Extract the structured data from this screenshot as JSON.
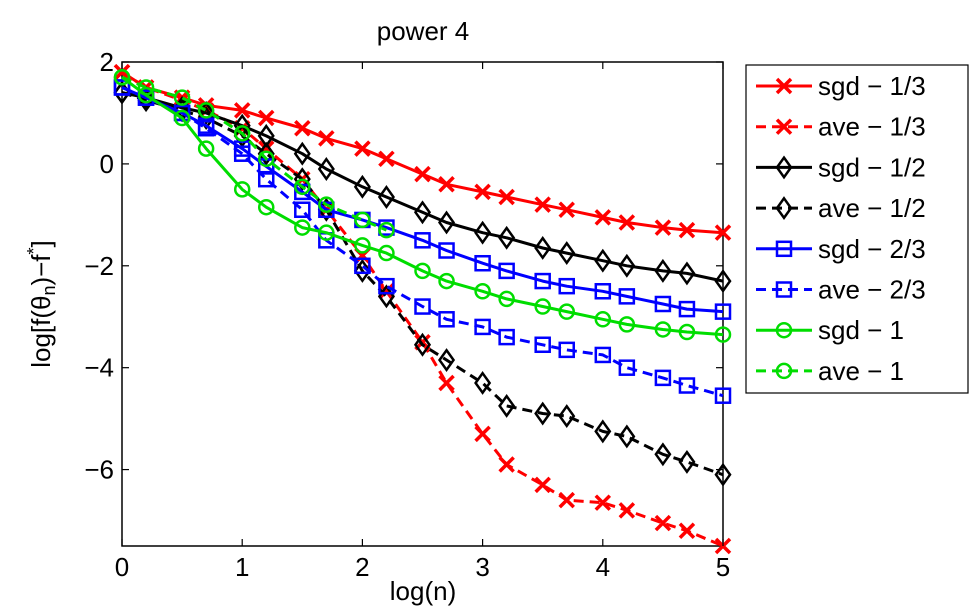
{
  "chart_data": {
    "type": "line",
    "title": "power 4",
    "xlabel": "log(n)",
    "ylabel_parts": {
      "main": "log[f(θ",
      "sub": "n",
      "mid": ")−f",
      "sup": "*",
      "end": "]"
    },
    "xlim": [
      0,
      5
    ],
    "ylim": [
      -7.5,
      2
    ],
    "xticks": [
      0,
      1,
      2,
      3,
      4,
      5
    ],
    "xtick_labels": [
      "0",
      "1",
      "2",
      "3",
      "4",
      "5"
    ],
    "yticks": [
      2,
      0,
      -2,
      -4,
      -6
    ],
    "ytick_labels": [
      "2",
      "0",
      "−2",
      "−4",
      "−6"
    ],
    "grid": false,
    "legend_position": "outside-right",
    "series": [
      {
        "name": "sgd − 1/3",
        "color": "#ff0000",
        "dash": "solid",
        "marker": "x",
        "x": [
          0,
          0.2,
          0.5,
          0.7,
          1.0,
          1.2,
          1.5,
          1.7,
          2.0,
          2.2,
          2.5,
          2.7,
          3.0,
          3.2,
          3.5,
          3.7,
          4.0,
          4.2,
          4.5,
          4.7,
          5.0
        ],
        "y": [
          1.8,
          1.5,
          1.3,
          1.15,
          1.05,
          0.9,
          0.7,
          0.5,
          0.3,
          0.1,
          -0.2,
          -0.4,
          -0.55,
          -0.65,
          -0.8,
          -0.9,
          -1.05,
          -1.15,
          -1.25,
          -1.3,
          -1.35
        ]
      },
      {
        "name": "ave − 1/3",
        "color": "#ff0000",
        "dash": "dashed",
        "marker": "x",
        "x": [
          0,
          0.2,
          0.5,
          0.7,
          1.0,
          1.2,
          1.5,
          1.7,
          2.0,
          2.2,
          2.5,
          2.7,
          3.0,
          3.2,
          3.5,
          3.7,
          4.0,
          4.2,
          4.5,
          4.7,
          5.0
        ],
        "y": [
          1.8,
          1.5,
          1.25,
          1.05,
          0.7,
          0.3,
          -0.3,
          -0.9,
          -1.8,
          -2.5,
          -3.5,
          -4.3,
          -5.3,
          -5.9,
          -6.3,
          -6.6,
          -6.65,
          -6.8,
          -7.05,
          -7.2,
          -7.5
        ]
      },
      {
        "name": "sgd − 1/2",
        "color": "#000000",
        "dash": "solid",
        "marker": "diamond",
        "x": [
          0,
          0.2,
          0.5,
          0.7,
          1.0,
          1.2,
          1.5,
          1.7,
          2.0,
          2.2,
          2.5,
          2.7,
          3.0,
          3.2,
          3.5,
          3.7,
          4.0,
          4.2,
          4.5,
          4.7,
          5.0
        ],
        "y": [
          1.4,
          1.3,
          1.1,
          1.0,
          0.75,
          0.55,
          0.2,
          -0.1,
          -0.45,
          -0.65,
          -0.95,
          -1.15,
          -1.35,
          -1.45,
          -1.65,
          -1.75,
          -1.9,
          -2.0,
          -2.1,
          -2.15,
          -2.3
        ]
      },
      {
        "name": "ave − 1/2",
        "color": "#000000",
        "dash": "dashed",
        "marker": "diamond",
        "x": [
          0,
          0.2,
          0.5,
          0.7,
          1.0,
          1.2,
          1.5,
          1.7,
          2.0,
          2.2,
          2.5,
          2.7,
          3.0,
          3.2,
          3.5,
          3.7,
          4.0,
          4.2,
          4.5,
          4.7,
          5.0
        ],
        "y": [
          1.4,
          1.25,
          1.05,
          0.9,
          0.55,
          0.2,
          -0.3,
          -0.9,
          -2.1,
          -2.6,
          -3.55,
          -3.85,
          -4.3,
          -4.75,
          -4.9,
          -4.95,
          -5.25,
          -5.35,
          -5.7,
          -5.85,
          -6.1
        ]
      },
      {
        "name": "sgd − 2/3",
        "color": "#0000ff",
        "dash": "solid",
        "marker": "square",
        "x": [
          0,
          0.2,
          0.5,
          0.7,
          1.0,
          1.2,
          1.5,
          1.7,
          2.0,
          2.2,
          2.5,
          2.7,
          3.0,
          3.2,
          3.5,
          3.7,
          4.0,
          4.2,
          4.5,
          4.7,
          5.0
        ],
        "y": [
          1.5,
          1.3,
          1.0,
          0.75,
          0.3,
          -0.05,
          -0.55,
          -0.9,
          -1.1,
          -1.25,
          -1.5,
          -1.7,
          -1.95,
          -2.1,
          -2.3,
          -2.4,
          -2.5,
          -2.6,
          -2.75,
          -2.85,
          -2.9
        ]
      },
      {
        "name": "ave − 2/3",
        "color": "#0000ff",
        "dash": "dashed",
        "marker": "square",
        "x": [
          0,
          0.2,
          0.5,
          0.7,
          1.0,
          1.2,
          1.5,
          1.7,
          2.0,
          2.2,
          2.5,
          2.7,
          3.0,
          3.2,
          3.5,
          3.7,
          4.0,
          4.2,
          4.5,
          4.7,
          5.0
        ],
        "y": [
          1.5,
          1.3,
          1.0,
          0.7,
          0.2,
          -0.3,
          -0.9,
          -1.5,
          -2.0,
          -2.4,
          -2.8,
          -3.05,
          -3.2,
          -3.4,
          -3.55,
          -3.65,
          -3.75,
          -4.0,
          -4.2,
          -4.35,
          -4.55
        ]
      },
      {
        "name": "sgd − 1",
        "color": "#00dd00",
        "dash": "solid",
        "marker": "circle",
        "x": [
          0,
          0.2,
          0.5,
          0.7,
          1.0,
          1.2,
          1.5,
          1.7,
          2.0,
          2.2,
          2.5,
          2.7,
          3.0,
          3.2,
          3.5,
          3.7,
          4.0,
          4.2,
          4.5,
          4.7,
          5.0
        ],
        "y": [
          1.7,
          1.35,
          0.9,
          0.3,
          -0.5,
          -0.85,
          -1.25,
          -1.35,
          -1.6,
          -1.75,
          -2.1,
          -2.3,
          -2.5,
          -2.65,
          -2.8,
          -2.9,
          -3.05,
          -3.15,
          -3.25,
          -3.3,
          -3.35
        ]
      },
      {
        "name": "ave − 1",
        "color": "#00dd00",
        "dash": "dashed",
        "marker": "circle",
        "x": [
          0,
          0.2,
          0.5,
          0.7,
          1.0,
          1.2,
          1.5,
          1.7,
          2.0,
          2.2
        ],
        "y": [
          1.7,
          1.5,
          1.3,
          1.05,
          0.6,
          0.1,
          -0.45,
          -0.8,
          -1.1,
          -1.3
        ]
      }
    ]
  }
}
